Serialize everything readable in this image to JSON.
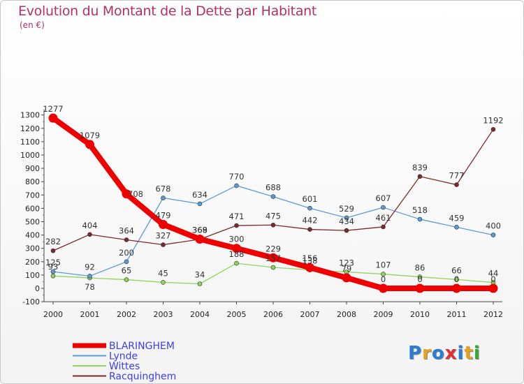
{
  "title": "Evolution du Montant de la Dette par Habitant",
  "unit_label": "(en €)",
  "logo": {
    "text": "Proxiti",
    "letters": [
      "P",
      "r",
      "o",
      "x",
      "i",
      "t",
      "i"
    ],
    "colors": [
      "#2a7dd6",
      "#e8a020",
      "#2a7dd6",
      "#e03030",
      "#2a7dd6",
      "#e8a020",
      "#33aa33"
    ]
  },
  "chart_data": {
    "type": "line",
    "title": "Evolution du Montant de la Dette par Habitant",
    "ylabel": "(en €)",
    "xlabel": "",
    "x": [
      "2000",
      "2001",
      "2002",
      "2003",
      "2004",
      "2005",
      "2006",
      "2007",
      "2008",
      "2009",
      "2010",
      "2011",
      "2012"
    ],
    "ylim": [
      -100,
      1300
    ],
    "yticks": [
      "-100",
      "0",
      "100",
      "200",
      "300",
      "400",
      "500",
      "600",
      "700",
      "800",
      "900",
      "1000",
      "1100",
      "1200",
      "1300"
    ],
    "grid": false,
    "legend_position": "bottom-left",
    "series": [
      {
        "name": "BLARINGHEM",
        "color": "#ee0000",
        "values": [
          1277,
          1079,
          708,
          479,
          369,
          300,
          229,
          156,
          79,
          0,
          0,
          0,
          0
        ],
        "labels": [
          "1277",
          "1079",
          "708",
          "479",
          "369",
          "300",
          "229",
          "156",
          "79",
          "0",
          "0",
          "0",
          "0"
        ]
      },
      {
        "name": "Lynde",
        "color": "#5b9bd5",
        "values": [
          125,
          92,
          200,
          678,
          634,
          770,
          688,
          601,
          529,
          607,
          518,
          459,
          400
        ],
        "labels": [
          "125",
          "92",
          "200",
          "678",
          "634",
          "770",
          "688",
          "601",
          "529",
          "607",
          "518",
          "459",
          "400"
        ]
      },
      {
        "name": "Wittes",
        "color": "#8ed45a",
        "values": [
          93,
          78,
          65,
          45,
          34,
          188,
          157,
          138,
          123,
          107,
          86,
          66,
          44
        ],
        "labels": [
          "93",
          "78",
          "65",
          "45",
          "34",
          "188",
          "157",
          "138",
          "123",
          "107",
          "86",
          "66",
          "44"
        ]
      },
      {
        "name": "Racquinghem",
        "color": "#7a2a2a",
        "values": [
          282,
          404,
          364,
          327,
          368,
          471,
          475,
          442,
          434,
          461,
          839,
          777,
          1192
        ],
        "labels": [
          "282",
          "404",
          "364",
          "327",
          "368",
          "471",
          "475",
          "442",
          "434",
          "461",
          "839",
          "777",
          "1192"
        ]
      }
    ]
  }
}
